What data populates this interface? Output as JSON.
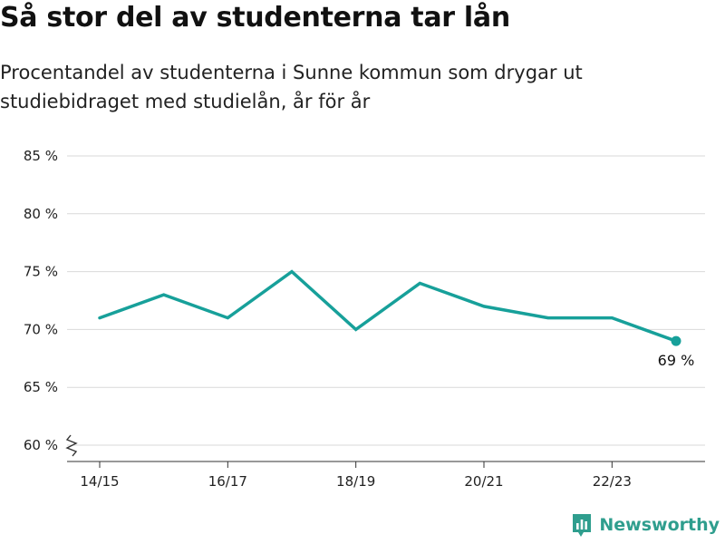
{
  "title": "Så stor del av studenterna tar lån",
  "subtitle": "Procentandel av studenterna i Sunne kommun som drygar ut studiebidraget med studielån, år för år",
  "brand": {
    "name": "Newsworthy",
    "color": "#2f9e8e"
  },
  "end_label": "69 %",
  "chart_data": {
    "type": "line",
    "title": "Så stor del av studenterna tar lån",
    "subtitle": "Procentandel av studenterna i Sunne kommun som drygar ut studiebidraget med studielån, år för år",
    "xlabel": "",
    "ylabel": "",
    "x": [
      "14/15",
      "15/16",
      "16/17",
      "17/18",
      "18/19",
      "19/20",
      "20/21",
      "21/22",
      "22/23",
      "23/24"
    ],
    "x_tick_labels": [
      "14/15",
      "16/17",
      "18/19",
      "20/21",
      "22/23"
    ],
    "series": [
      {
        "values": [
          71,
          73,
          71,
          75,
          70,
          74,
          72,
          71,
          71,
          69
        ],
        "color": "#17a09a"
      }
    ],
    "y_ticks": [
      60,
      65,
      70,
      75,
      80,
      85
    ],
    "y_tick_labels": [
      "60 %",
      "65 %",
      "70 %",
      "75 %",
      "80 %",
      "85 %"
    ],
    "ylim": [
      59,
      86
    ],
    "y_axis_break": true,
    "grid": "horizontal",
    "legend": "none"
  }
}
